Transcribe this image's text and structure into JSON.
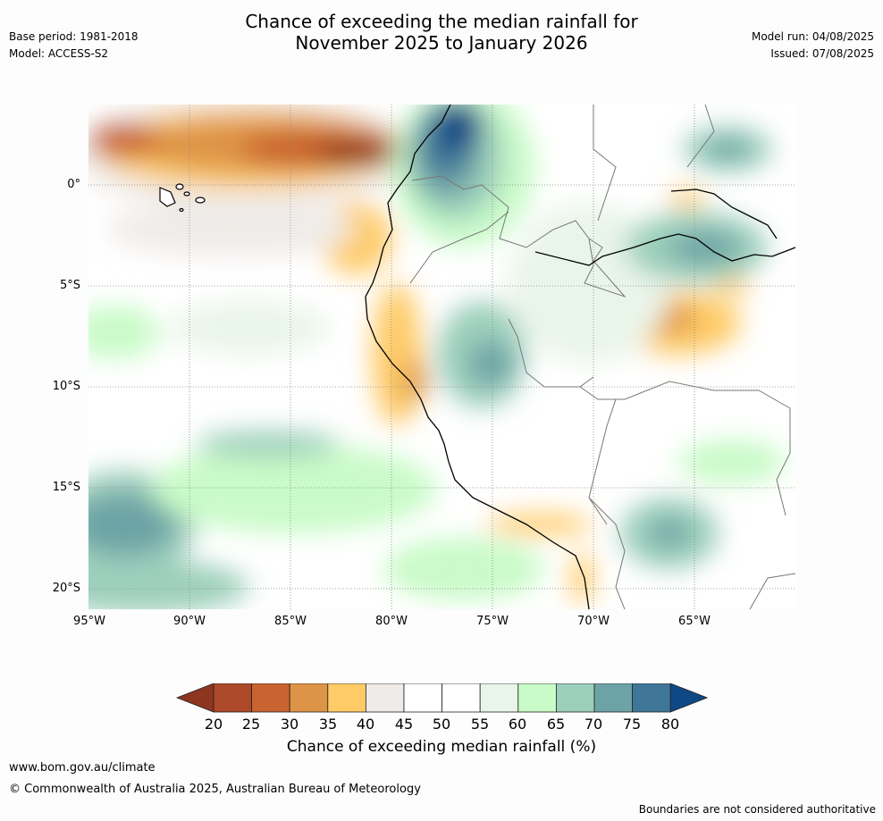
{
  "header": {
    "title_line1": "Chance of exceeding the median rainfall for",
    "title_line2": "November 2025 to January 2026",
    "base_period": "Base period: 1981-2018",
    "model": "Model: ACCESS-S2",
    "model_run": "Model run: 04/08/2025",
    "issued": "Issued: 07/08/2025"
  },
  "map": {
    "lat_labels": [
      "0°",
      "5°S",
      "10°S",
      "15°S",
      "20°S"
    ],
    "lon_labels": [
      "95°W",
      "90°W",
      "85°W",
      "80°W",
      "75°W",
      "70°W",
      "65°W"
    ]
  },
  "colorbar": {
    "ticks": [
      "20",
      "25",
      "30",
      "35",
      "40",
      "45",
      "50",
      "55",
      "60",
      "65",
      "70",
      "75",
      "80"
    ],
    "title": "Chance of exceeding median rainfall (%)",
    "colors": [
      "#8e3520",
      "#ac4928",
      "#c9632f",
      "#de9447",
      "#fecb67",
      "#efebe8",
      "#ffffff",
      "#ffffff",
      "#eaf5ea",
      "#c9fbc8",
      "#9ccfbb",
      "#6da3a6",
      "#3f7698",
      "#0f4985"
    ]
  },
  "footer": {
    "website": "www.bom.gov.au/climate",
    "copyright": "© Commonwealth of Australia 2025, Australian Bureau of Meteorology",
    "disclaimer": "Boundaries are not considered authoritative"
  }
}
